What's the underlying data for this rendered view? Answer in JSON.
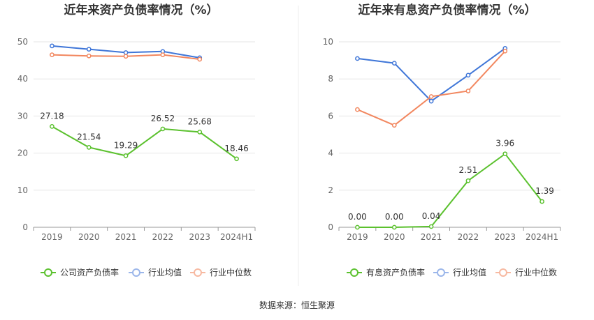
{
  "colors": {
    "green": "#5bc12e",
    "blue": "#3f76d8",
    "orange": "#f2875f",
    "legend_blue": "#9bb6ea",
    "legend_orange": "#f7b9a1",
    "grid": "#e6e6e6",
    "axis": "#999999"
  },
  "source_text": "数据来源：恒生聚源",
  "chart_data": [
    {
      "type": "line",
      "title": "近年来资产负债率情况（%）",
      "categories": [
        "2019",
        "2020",
        "2021",
        "2022",
        "2023",
        "2024H1"
      ],
      "ylim": [
        0,
        50
      ],
      "yticks": [
        0,
        10,
        20,
        30,
        40,
        50
      ],
      "grid": true,
      "legend_position": "bottom",
      "series": [
        {
          "name": "公司资产负债率",
          "values": [
            27.18,
            21.54,
            19.29,
            26.52,
            25.68,
            18.46
          ],
          "labels": [
            "27.18",
            "21.54",
            "19.29",
            "26.52",
            "25.68",
            "18.46"
          ],
          "color": "green"
        },
        {
          "name": "行业均值",
          "values": [
            48.9,
            48.0,
            47.1,
            47.4,
            45.7,
            null
          ],
          "color": "blue"
        },
        {
          "name": "行业中位数",
          "values": [
            46.5,
            46.2,
            46.1,
            46.5,
            45.3,
            null
          ],
          "color": "orange"
        }
      ]
    },
    {
      "type": "line",
      "title": "近年来有息资产负债率情况（%）",
      "categories": [
        "2019",
        "2020",
        "2021",
        "2022",
        "2023",
        "2024H1"
      ],
      "ylim": [
        0,
        10
      ],
      "yticks": [
        0,
        2,
        4,
        6,
        8,
        10
      ],
      "grid": true,
      "legend_position": "bottom",
      "series": [
        {
          "name": "有息资产负债率",
          "values": [
            0.0,
            0.0,
            0.04,
            2.51,
            3.96,
            1.39
          ],
          "labels": [
            "0.00",
            "0.00",
            "0.04",
            "2.51",
            "3.96",
            "1.39"
          ],
          "color": "green"
        },
        {
          "name": "行业均值",
          "values": [
            9.1,
            8.85,
            6.8,
            8.2,
            9.65,
            null
          ],
          "color": "blue"
        },
        {
          "name": "行业中位数",
          "values": [
            6.35,
            5.5,
            7.05,
            7.35,
            9.5,
            null
          ],
          "color": "orange"
        }
      ]
    }
  ]
}
